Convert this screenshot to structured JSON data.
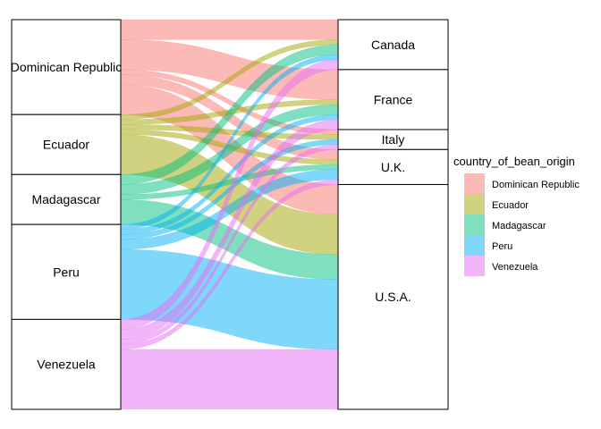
{
  "chart_data": {
    "type": "alluvial",
    "axes": [
      "origin",
      "company_location"
    ],
    "origins": [
      {
        "name": "Dominican Republic",
        "color": "#F8766D"
      },
      {
        "name": "Ecuador",
        "color": "#A3A500"
      },
      {
        "name": "Madagascar",
        "color": "#00BF7D"
      },
      {
        "name": "Peru",
        "color": "#00B0F6"
      },
      {
        "name": "Venezuela",
        "color": "#E76BF3"
      }
    ],
    "destinations": [
      "Canada",
      "France",
      "Italy",
      "U.K.",
      "U.S.A."
    ],
    "flows": [
      [
        4,
        6,
        1,
        2,
        6
      ],
      [
        1,
        1,
        1,
        1,
        8
      ],
      [
        2,
        2,
        0,
        1,
        5
      ],
      [
        1,
        1,
        1,
        2,
        14
      ],
      [
        2,
        2,
        1,
        1,
        12
      ]
    ],
    "legend": {
      "title": "country_of_bean_origin",
      "position": "right"
    }
  }
}
